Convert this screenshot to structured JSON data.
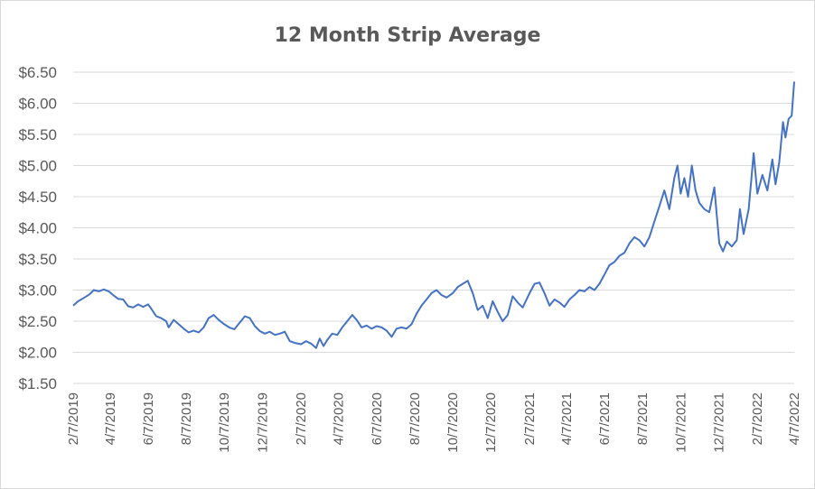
{
  "chart_data": {
    "type": "line",
    "title": "12 Month Strip Average",
    "xlabel": "",
    "ylabel": "",
    "ylim": [
      1.5,
      6.5
    ],
    "xlim": [
      "2019-02-07",
      "2022-04-07"
    ],
    "yticks": [
      {
        "value": 1.5,
        "label": "$1.50"
      },
      {
        "value": 2.0,
        "label": "$2.00"
      },
      {
        "value": 2.5,
        "label": "$2.50"
      },
      {
        "value": 3.0,
        "label": "$3.00"
      },
      {
        "value": 3.5,
        "label": "$3.50"
      },
      {
        "value": 4.0,
        "label": "$4.00"
      },
      {
        "value": 4.5,
        "label": "$4.50"
      },
      {
        "value": 5.0,
        "label": "$5.00"
      },
      {
        "value": 5.5,
        "label": "$5.50"
      },
      {
        "value": 6.0,
        "label": "$6.00"
      },
      {
        "value": 6.5,
        "label": "$6.50"
      }
    ],
    "xticks": [
      {
        "date": "2019-02-07",
        "label": "2/7/2019"
      },
      {
        "date": "2019-04-07",
        "label": "4/7/2019"
      },
      {
        "date": "2019-06-07",
        "label": "6/7/2019"
      },
      {
        "date": "2019-08-07",
        "label": "8/7/2019"
      },
      {
        "date": "2019-10-07",
        "label": "10/7/2019"
      },
      {
        "date": "2019-12-07",
        "label": "12/7/2019"
      },
      {
        "date": "2020-02-07",
        "label": "2/7/2020"
      },
      {
        "date": "2020-04-07",
        "label": "4/7/2020"
      },
      {
        "date": "2020-06-07",
        "label": "6/7/2020"
      },
      {
        "date": "2020-08-07",
        "label": "8/7/2020"
      },
      {
        "date": "2020-10-07",
        "label": "10/7/2020"
      },
      {
        "date": "2020-12-07",
        "label": "12/7/2020"
      },
      {
        "date": "2021-02-07",
        "label": "2/7/2021"
      },
      {
        "date": "2021-04-07",
        "label": "4/7/2021"
      },
      {
        "date": "2021-06-07",
        "label": "6/7/2021"
      },
      {
        "date": "2021-08-07",
        "label": "8/7/2021"
      },
      {
        "date": "2021-10-07",
        "label": "10/7/2021"
      },
      {
        "date": "2021-12-07",
        "label": "12/7/2021"
      },
      {
        "date": "2022-02-07",
        "label": "2/7/2022"
      },
      {
        "date": "2022-04-07",
        "label": "4/7/2022"
      }
    ],
    "grid": "horizontal",
    "legend": "none",
    "series_color": "#4472c4",
    "series": [
      {
        "points": [
          [
            "2019-02-07",
            2.75
          ],
          [
            "2019-02-15",
            2.82
          ],
          [
            "2019-02-25",
            2.88
          ],
          [
            "2019-03-05",
            2.93
          ],
          [
            "2019-03-12",
            3.0
          ],
          [
            "2019-03-20",
            2.98
          ],
          [
            "2019-03-28",
            3.01
          ],
          [
            "2019-04-05",
            2.98
          ],
          [
            "2019-04-12",
            2.92
          ],
          [
            "2019-04-20",
            2.86
          ],
          [
            "2019-04-28",
            2.85
          ],
          [
            "2019-05-06",
            2.74
          ],
          [
            "2019-05-14",
            2.72
          ],
          [
            "2019-05-22",
            2.77
          ],
          [
            "2019-05-30",
            2.73
          ],
          [
            "2019-06-07",
            2.77
          ],
          [
            "2019-06-12",
            2.7
          ],
          [
            "2019-06-20",
            2.58
          ],
          [
            "2019-06-28",
            2.55
          ],
          [
            "2019-07-06",
            2.5
          ],
          [
            "2019-07-10",
            2.4
          ],
          [
            "2019-07-18",
            2.52
          ],
          [
            "2019-07-26",
            2.45
          ],
          [
            "2019-08-03",
            2.38
          ],
          [
            "2019-08-11",
            2.32
          ],
          [
            "2019-08-19",
            2.35
          ],
          [
            "2019-08-27",
            2.32
          ],
          [
            "2019-09-04",
            2.4
          ],
          [
            "2019-09-12",
            2.55
          ],
          [
            "2019-09-20",
            2.6
          ],
          [
            "2019-09-28",
            2.52
          ],
          [
            "2019-10-07",
            2.45
          ],
          [
            "2019-10-15",
            2.4
          ],
          [
            "2019-10-23",
            2.37
          ],
          [
            "2019-11-01",
            2.48
          ],
          [
            "2019-11-09",
            2.58
          ],
          [
            "2019-11-17",
            2.55
          ],
          [
            "2019-11-25",
            2.42
          ],
          [
            "2019-12-03",
            2.34
          ],
          [
            "2019-12-11",
            2.3
          ],
          [
            "2019-12-19",
            2.33
          ],
          [
            "2019-12-27",
            2.28
          ],
          [
            "2020-01-04",
            2.3
          ],
          [
            "2020-01-12",
            2.33
          ],
          [
            "2020-01-20",
            2.18
          ],
          [
            "2020-01-28",
            2.15
          ],
          [
            "2020-02-07",
            2.13
          ],
          [
            "2020-02-15",
            2.18
          ],
          [
            "2020-02-23",
            2.14
          ],
          [
            "2020-03-02",
            2.07
          ],
          [
            "2020-03-08",
            2.22
          ],
          [
            "2020-03-14",
            2.1
          ],
          [
            "2020-03-20",
            2.2
          ],
          [
            "2020-03-28",
            2.3
          ],
          [
            "2020-04-05",
            2.28
          ],
          [
            "2020-04-13",
            2.4
          ],
          [
            "2020-04-21",
            2.5
          ],
          [
            "2020-04-29",
            2.6
          ],
          [
            "2020-05-06",
            2.52
          ],
          [
            "2020-05-14",
            2.4
          ],
          [
            "2020-05-22",
            2.43
          ],
          [
            "2020-05-30",
            2.38
          ],
          [
            "2020-06-07",
            2.42
          ],
          [
            "2020-06-15",
            2.4
          ],
          [
            "2020-06-23",
            2.35
          ],
          [
            "2020-07-01",
            2.25
          ],
          [
            "2020-07-09",
            2.38
          ],
          [
            "2020-07-17",
            2.4
          ],
          [
            "2020-07-25",
            2.38
          ],
          [
            "2020-08-02",
            2.45
          ],
          [
            "2020-08-10",
            2.62
          ],
          [
            "2020-08-18",
            2.75
          ],
          [
            "2020-08-26",
            2.85
          ],
          [
            "2020-09-03",
            2.95
          ],
          [
            "2020-09-11",
            3.0
          ],
          [
            "2020-09-19",
            2.92
          ],
          [
            "2020-09-27",
            2.88
          ],
          [
            "2020-10-07",
            2.95
          ],
          [
            "2020-10-15",
            3.05
          ],
          [
            "2020-10-23",
            3.1
          ],
          [
            "2020-10-31",
            3.15
          ],
          [
            "2020-11-08",
            2.95
          ],
          [
            "2020-11-16",
            2.68
          ],
          [
            "2020-11-24",
            2.75
          ],
          [
            "2020-12-02",
            2.55
          ],
          [
            "2020-12-10",
            2.82
          ],
          [
            "2020-12-18",
            2.65
          ],
          [
            "2020-12-26",
            2.5
          ],
          [
            "2021-01-03",
            2.6
          ],
          [
            "2021-01-11",
            2.9
          ],
          [
            "2021-01-19",
            2.8
          ],
          [
            "2021-01-27",
            2.72
          ],
          [
            "2021-02-07",
            2.95
          ],
          [
            "2021-02-15",
            3.1
          ],
          [
            "2021-02-23",
            3.12
          ],
          [
            "2021-03-03",
            2.95
          ],
          [
            "2021-03-11",
            2.75
          ],
          [
            "2021-03-19",
            2.85
          ],
          [
            "2021-03-27",
            2.8
          ],
          [
            "2021-04-04",
            2.73
          ],
          [
            "2021-04-12",
            2.85
          ],
          [
            "2021-04-20",
            2.92
          ],
          [
            "2021-04-28",
            3.0
          ],
          [
            "2021-05-06",
            2.98
          ],
          [
            "2021-05-14",
            3.05
          ],
          [
            "2021-05-22",
            3.0
          ],
          [
            "2021-05-30",
            3.1
          ],
          [
            "2021-06-07",
            3.25
          ],
          [
            "2021-06-15",
            3.4
          ],
          [
            "2021-06-23",
            3.45
          ],
          [
            "2021-07-01",
            3.55
          ],
          [
            "2021-07-09",
            3.6
          ],
          [
            "2021-07-17",
            3.75
          ],
          [
            "2021-07-25",
            3.85
          ],
          [
            "2021-08-02",
            3.8
          ],
          [
            "2021-08-10",
            3.7
          ],
          [
            "2021-08-18",
            3.85
          ],
          [
            "2021-08-26",
            4.1
          ],
          [
            "2021-09-03",
            4.35
          ],
          [
            "2021-09-11",
            4.6
          ],
          [
            "2021-09-19",
            4.3
          ],
          [
            "2021-09-27",
            4.8
          ],
          [
            "2021-10-02",
            5.0
          ],
          [
            "2021-10-07",
            4.55
          ],
          [
            "2021-10-13",
            4.8
          ],
          [
            "2021-10-19",
            4.5
          ],
          [
            "2021-10-25",
            5.0
          ],
          [
            "2021-10-31",
            4.6
          ],
          [
            "2021-11-06",
            4.4
          ],
          [
            "2021-11-14",
            4.3
          ],
          [
            "2021-11-22",
            4.25
          ],
          [
            "2021-11-30",
            4.65
          ],
          [
            "2021-12-04",
            4.2
          ],
          [
            "2021-12-08",
            3.75
          ],
          [
            "2021-12-14",
            3.62
          ],
          [
            "2021-12-20",
            3.78
          ],
          [
            "2021-12-28",
            3.7
          ],
          [
            "2022-01-05",
            3.8
          ],
          [
            "2022-01-10",
            4.3
          ],
          [
            "2022-01-16",
            3.9
          ],
          [
            "2022-01-24",
            4.3
          ],
          [
            "2022-02-01",
            5.2
          ],
          [
            "2022-02-07",
            4.55
          ],
          [
            "2022-02-15",
            4.85
          ],
          [
            "2022-02-23",
            4.6
          ],
          [
            "2022-03-03",
            5.1
          ],
          [
            "2022-03-08",
            4.7
          ],
          [
            "2022-03-14",
            5.05
          ],
          [
            "2022-03-20",
            5.7
          ],
          [
            "2022-03-24",
            5.45
          ],
          [
            "2022-03-29",
            5.75
          ],
          [
            "2022-04-03",
            5.8
          ],
          [
            "2022-04-07",
            6.35
          ]
        ]
      }
    ]
  }
}
